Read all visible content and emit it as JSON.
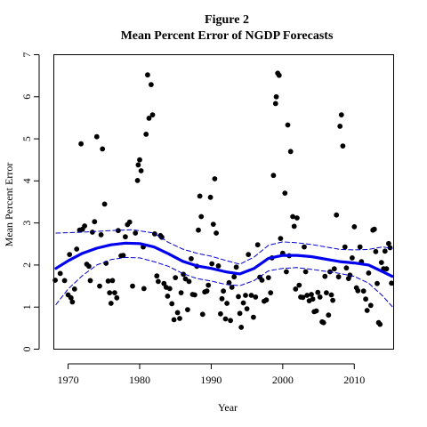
{
  "chart_data": {
    "type": "scatter",
    "title": "Figure 2",
    "subtitle": "Mean Percent Error of NGDP Forecasts",
    "xlabel": "Year",
    "ylabel": "Mean Percent Error",
    "xlim": [
      1968,
      2015.5
    ],
    "ylim": [
      0,
      7
    ],
    "x_ticks": [
      "1970",
      "1980",
      "1990",
      "2000",
      "2010"
    ],
    "y_ticks": [
      "0",
      "1",
      "2",
      "3",
      "4",
      "5",
      "6",
      "7"
    ],
    "grid": false,
    "legend": "none",
    "colors": {
      "points": "#000000",
      "fit": "#0000ee",
      "band": "#0000cc"
    },
    "series": [
      {
        "type": "scatter",
        "points": [
          [
            1968.2,
            1.64
          ],
          [
            1968.9,
            1.8
          ],
          [
            1969.5,
            1.63
          ],
          [
            1970.0,
            1.29
          ],
          [
            1970.2,
            2.25
          ],
          [
            1970.4,
            1.22
          ],
          [
            1970.6,
            1.12
          ],
          [
            1970.9,
            1.43
          ],
          [
            1971.2,
            2.38
          ],
          [
            1971.6,
            2.83
          ],
          [
            1971.8,
            4.88
          ],
          [
            1972.0,
            2.85
          ],
          [
            1972.3,
            2.93
          ],
          [
            1972.6,
            2.02
          ],
          [
            1972.9,
            1.97
          ],
          [
            1973.1,
            1.63
          ],
          [
            1973.4,
            2.78
          ],
          [
            1973.7,
            3.03
          ],
          [
            1974.0,
            5.05
          ],
          [
            1974.4,
            1.5
          ],
          [
            1974.6,
            2.72
          ],
          [
            1974.8,
            4.76
          ],
          [
            1975.1,
            3.45
          ],
          [
            1975.3,
            2.04
          ],
          [
            1975.6,
            1.62
          ],
          [
            1975.8,
            1.34
          ],
          [
            1976.0,
            1.09
          ],
          [
            1976.2,
            1.63
          ],
          [
            1976.5,
            1.34
          ],
          [
            1976.8,
            1.22
          ],
          [
            1977.0,
            2.82
          ],
          [
            1977.4,
            2.22
          ],
          [
            1977.7,
            2.23
          ],
          [
            1978.0,
            2.67
          ],
          [
            1978.3,
            2.96
          ],
          [
            1978.6,
            3.02
          ],
          [
            1979.0,
            1.5
          ],
          [
            1979.4,
            2.76
          ],
          [
            1979.7,
            4.01
          ],
          [
            1979.8,
            4.38
          ],
          [
            1980.0,
            4.5
          ],
          [
            1980.2,
            4.24
          ],
          [
            1980.5,
            2.43
          ],
          [
            1980.6,
            1.44
          ],
          [
            1980.9,
            5.11
          ],
          [
            1981.1,
            6.52
          ],
          [
            1981.3,
            5.49
          ],
          [
            1981.6,
            6.29
          ],
          [
            1981.8,
            5.57
          ],
          [
            1982.1,
            2.74
          ],
          [
            1982.4,
            1.74
          ],
          [
            1982.6,
            1.61
          ],
          [
            1982.9,
            2.7
          ],
          [
            1983.1,
            2.66
          ],
          [
            1983.4,
            1.56
          ],
          [
            1983.7,
            1.47
          ],
          [
            1983.9,
            1.26
          ],
          [
            1984.2,
            1.44
          ],
          [
            1984.5,
            1.08
          ],
          [
            1984.8,
            0.7
          ],
          [
            1985.0,
            1.7
          ],
          [
            1985.3,
            0.87
          ],
          [
            1985.6,
            0.73
          ],
          [
            1985.8,
            1.34
          ],
          [
            1986.1,
            1.78
          ],
          [
            1986.4,
            1.67
          ],
          [
            1986.7,
            0.94
          ],
          [
            1986.9,
            1.61
          ],
          [
            1987.2,
            2.15
          ],
          [
            1987.4,
            1.3
          ],
          [
            1987.7,
            1.29
          ],
          [
            1988.0,
            1.97
          ],
          [
            1988.2,
            2.83
          ],
          [
            1988.4,
            3.64
          ],
          [
            1988.6,
            3.15
          ],
          [
            1988.8,
            0.83
          ],
          [
            1989.1,
            1.36
          ],
          [
            1989.4,
            1.38
          ],
          [
            1989.6,
            1.52
          ],
          [
            1989.9,
            3.61
          ],
          [
            1990.1,
            2.03
          ],
          [
            1990.3,
            2.97
          ],
          [
            1990.5,
            4.05
          ],
          [
            1990.7,
            2.76
          ],
          [
            1991.0,
            1.98
          ],
          [
            1991.3,
            0.84
          ],
          [
            1991.5,
            1.2
          ],
          [
            1991.7,
            1.38
          ],
          [
            1992.0,
            0.72
          ],
          [
            1992.2,
            1.09
          ],
          [
            1992.5,
            1.58
          ],
          [
            1992.7,
            0.68
          ],
          [
            1992.9,
            1.47
          ],
          [
            1993.2,
            1.72
          ],
          [
            1993.5,
            1.95
          ],
          [
            1993.8,
            1.25
          ],
          [
            1994.0,
            0.85
          ],
          [
            1994.2,
            0.52
          ],
          [
            1994.5,
            1.1
          ],
          [
            1994.8,
            1.28
          ],
          [
            1995.0,
            0.96
          ],
          [
            1995.2,
            2.25
          ],
          [
            1995.6,
            1.28
          ],
          [
            1995.9,
            0.76
          ],
          [
            1996.2,
            1.24
          ],
          [
            1996.5,
            2.48
          ],
          [
            1996.8,
            1.71
          ],
          [
            1997.1,
            1.64
          ],
          [
            1997.4,
            1.14
          ],
          [
            1997.7,
            1.17
          ],
          [
            1998.0,
            1.7
          ],
          [
            1998.3,
            1.34
          ],
          [
            1998.5,
            2.17
          ],
          [
            1998.7,
            4.13
          ],
          [
            1999.0,
            5.84
          ],
          [
            1999.1,
            6.0
          ],
          [
            1999.3,
            6.56
          ],
          [
            1999.5,
            6.51
          ],
          [
            1999.7,
            2.63
          ],
          [
            2000.0,
            2.28
          ],
          [
            2000.3,
            3.71
          ],
          [
            2000.5,
            1.84
          ],
          [
            2000.7,
            5.33
          ],
          [
            2000.9,
            2.22
          ],
          [
            2001.1,
            4.7
          ],
          [
            2001.4,
            3.15
          ],
          [
            2001.6,
            2.92
          ],
          [
            2001.8,
            1.43
          ],
          [
            2002.0,
            3.12
          ],
          [
            2002.3,
            1.52
          ],
          [
            2002.5,
            1.24
          ],
          [
            2002.8,
            1.23
          ],
          [
            2003.0,
            2.43
          ],
          [
            2003.2,
            1.84
          ],
          [
            2003.4,
            1.28
          ],
          [
            2003.7,
            1.15
          ],
          [
            2004.0,
            1.3
          ],
          [
            2004.2,
            1.19
          ],
          [
            2004.4,
            0.89
          ],
          [
            2004.7,
            0.91
          ],
          [
            2004.9,
            1.35
          ],
          [
            2005.2,
            1.24
          ],
          [
            2005.5,
            0.65
          ],
          [
            2005.7,
            0.63
          ],
          [
            2005.9,
            1.73
          ],
          [
            2006.1,
            1.34
          ],
          [
            2006.4,
            0.81
          ],
          [
            2006.6,
            1.84
          ],
          [
            2006.8,
            1.29
          ],
          [
            2007.0,
            1.16
          ],
          [
            2007.2,
            1.91
          ],
          [
            2007.5,
            3.19
          ],
          [
            2007.8,
            1.72
          ],
          [
            2008.0,
            5.3
          ],
          [
            2008.2,
            5.57
          ],
          [
            2008.4,
            4.83
          ],
          [
            2008.7,
            2.43
          ],
          [
            2008.9,
            1.93
          ],
          [
            2009.2,
            1.68
          ],
          [
            2009.4,
            1.76
          ],
          [
            2009.7,
            2.17
          ],
          [
            2010.0,
            2.91
          ],
          [
            2010.3,
            1.46
          ],
          [
            2010.5,
            1.39
          ],
          [
            2010.8,
            2.43
          ],
          [
            2011.0,
            2.08
          ],
          [
            2011.3,
            1.38
          ],
          [
            2011.6,
            1.19
          ],
          [
            2011.8,
            0.92
          ],
          [
            2012.0,
            1.81
          ],
          [
            2012.3,
            1.04
          ],
          [
            2012.6,
            2.83
          ],
          [
            2012.8,
            2.85
          ],
          [
            2013.0,
            2.32
          ],
          [
            2013.2,
            1.56
          ],
          [
            2013.4,
            0.63
          ],
          [
            2013.6,
            0.59
          ],
          [
            2013.8,
            2.06
          ],
          [
            2014.1,
            1.91
          ],
          [
            2014.3,
            2.33
          ],
          [
            2014.5,
            1.91
          ],
          [
            2014.8,
            2.51
          ],
          [
            2015.0,
            2.41
          ],
          [
            2015.2,
            1.57
          ]
        ]
      },
      {
        "type": "line",
        "style": "solid",
        "points": [
          [
            1968.3,
            1.92
          ],
          [
            1970,
            2.1
          ],
          [
            1972,
            2.28
          ],
          [
            1974,
            2.4
          ],
          [
            1976,
            2.48
          ],
          [
            1978,
            2.52
          ],
          [
            1980,
            2.51
          ],
          [
            1982,
            2.43
          ],
          [
            1984,
            2.27
          ],
          [
            1986,
            2.09
          ],
          [
            1988,
            1.98
          ],
          [
            1990,
            1.92
          ],
          [
            1992,
            1.84
          ],
          [
            1994,
            1.79
          ],
          [
            1996,
            1.92
          ],
          [
            1998,
            2.16
          ],
          [
            2000,
            2.23
          ],
          [
            2002,
            2.23
          ],
          [
            2004,
            2.2
          ],
          [
            2006,
            2.14
          ],
          [
            2008,
            2.08
          ],
          [
            2010,
            2.05
          ],
          [
            2012,
            2.0
          ],
          [
            2014,
            1.84
          ],
          [
            2015.3,
            1.73
          ]
        ]
      },
      {
        "type": "line",
        "style": "dashed",
        "points": [
          [
            1968.3,
            2.76
          ],
          [
            1972,
            2.78
          ],
          [
            1976,
            2.82
          ],
          [
            1979,
            2.84
          ],
          [
            1982,
            2.76
          ],
          [
            1984,
            2.54
          ],
          [
            1986,
            2.38
          ],
          [
            1988,
            2.28
          ],
          [
            1990,
            2.21
          ],
          [
            1992,
            2.11
          ],
          [
            1994,
            2.02
          ],
          [
            1996,
            2.19
          ],
          [
            1998,
            2.47
          ],
          [
            2000,
            2.55
          ],
          [
            2002,
            2.53
          ],
          [
            2004,
            2.49
          ],
          [
            2006,
            2.43
          ],
          [
            2008,
            2.37
          ],
          [
            2010,
            2.36
          ],
          [
            2012,
            2.37
          ],
          [
            2014,
            2.43
          ],
          [
            2015.3,
            2.39
          ]
        ]
      },
      {
        "type": "line",
        "style": "dashed",
        "points": [
          [
            1968.3,
            1.06
          ],
          [
            1970,
            1.43
          ],
          [
            1972,
            1.75
          ],
          [
            1974,
            2.0
          ],
          [
            1976,
            2.13
          ],
          [
            1978,
            2.18
          ],
          [
            1980,
            2.17
          ],
          [
            1982,
            2.08
          ],
          [
            1984,
            1.97
          ],
          [
            1986,
            1.8
          ],
          [
            1988,
            1.68
          ],
          [
            1990,
            1.62
          ],
          [
            1992,
            1.54
          ],
          [
            1994,
            1.51
          ],
          [
            1996,
            1.63
          ],
          [
            1998,
            1.86
          ],
          [
            2000,
            1.92
          ],
          [
            2002,
            1.94
          ],
          [
            2004,
            1.9
          ],
          [
            2006,
            1.85
          ],
          [
            2008,
            1.8
          ],
          [
            2010,
            1.73
          ],
          [
            2012,
            1.57
          ],
          [
            2014,
            1.26
          ],
          [
            2015.3,
            1.01
          ]
        ]
      }
    ]
  }
}
